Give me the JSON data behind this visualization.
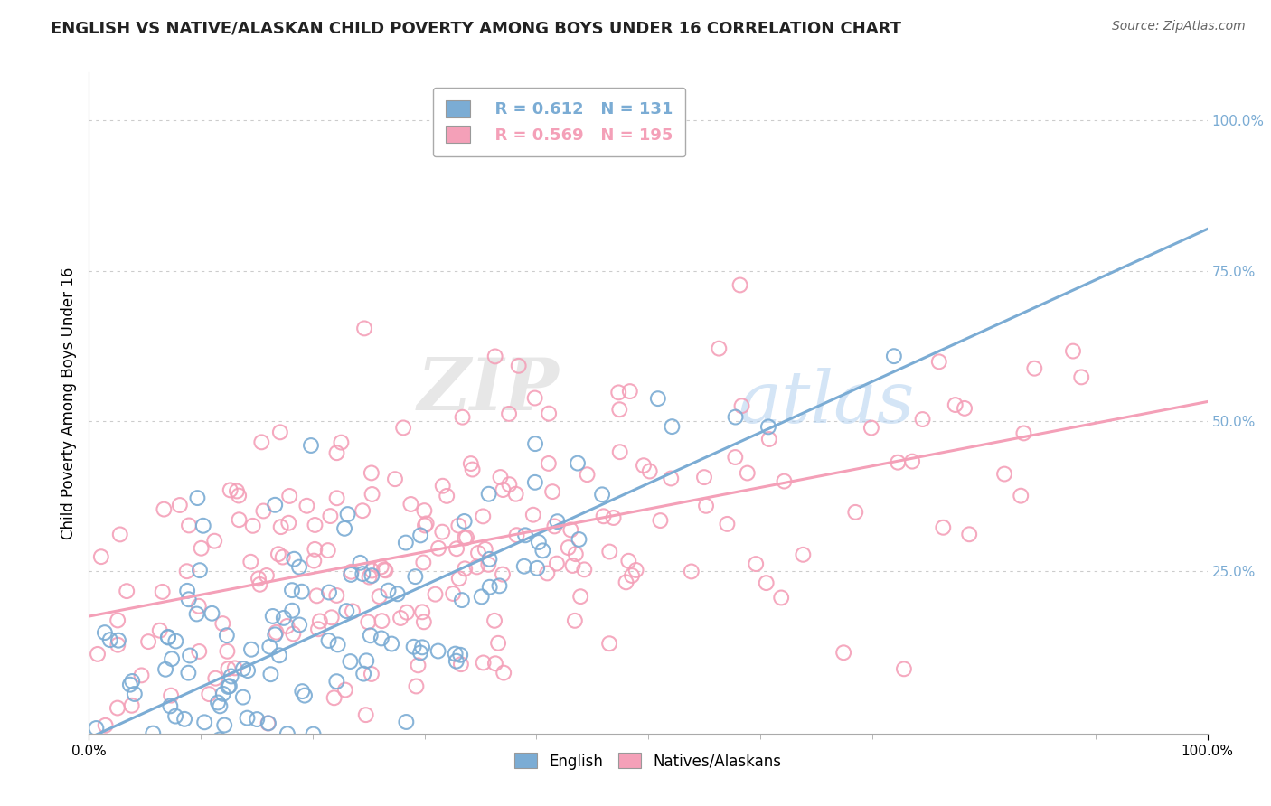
{
  "title": "ENGLISH VS NATIVE/ALASKAN CHILD POVERTY AMONG BOYS UNDER 16 CORRELATION CHART",
  "source": "Source: ZipAtlas.com",
  "ylabel": "Child Poverty Among Boys Under 16",
  "english_color": "#7BACD4",
  "native_color": "#F4A0B8",
  "english_R": 0.612,
  "english_N": 131,
  "native_R": 0.569,
  "native_N": 195,
  "legend_labels": [
    "English",
    "Natives/Alaskans"
  ],
  "watermark_zip": "ZIP",
  "watermark_atlas": "atlas",
  "background_color": "#FFFFFF",
  "title_fontsize": 13,
  "axis_label_fontsize": 11,
  "legend_fontsize": 13,
  "marker_size": 130,
  "line_width": 2.2,
  "english_seed": 10,
  "native_seed": 20
}
